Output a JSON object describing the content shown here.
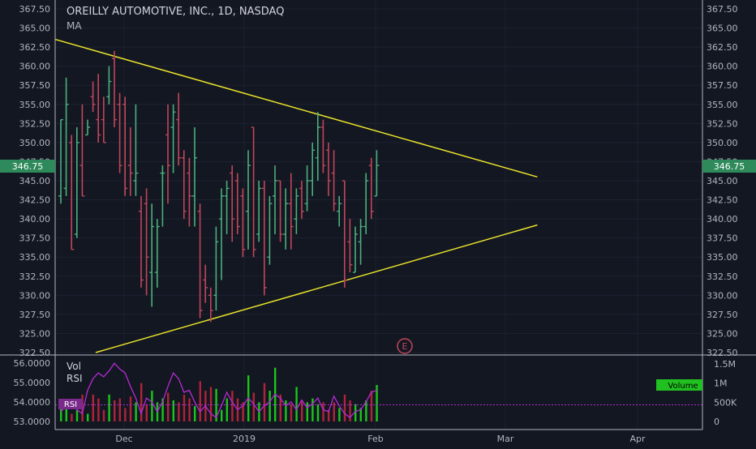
{
  "header": {
    "title": "OREILLY AUTOMOTIVE, INC., 1D, NASDAQ",
    "indicator": "MA"
  },
  "price_badge": "346.75",
  "earnings_marker": "E",
  "volume_pane": {
    "vol_label": "Vol",
    "rsi_label": "RSI",
    "rsi_tag": "RSI",
    "volume_tag": "Volume",
    "left_ticks": [
      "56.0000",
      "55.0000",
      "54.0000",
      "53.0000"
    ],
    "right_ticks": [
      "1.5M",
      "1M",
      "500K",
      "0"
    ]
  },
  "colors": {
    "background": "#131722",
    "up": "#4caf7d",
    "down": "#c0465a",
    "vol_up": "#1cc41c",
    "vol_down": "#b0233a",
    "trendline": "#e8e32a",
    "rsi": "#b62ad4",
    "badge": "#2e8a5a",
    "volume_tag_bg": "#21c021",
    "text": "#b2b5be"
  },
  "chart_data": {
    "type": "ohlc",
    "title": "OREILLY AUTOMOTIVE, INC., 1D, NASDAQ",
    "last_price": 346.75,
    "y_ticks": [
      "367.50",
      "365.00",
      "362.50",
      "360.00",
      "357.50",
      "355.00",
      "352.50",
      "350.00",
      "347.50",
      "345.00",
      "342.50",
      "340.00",
      "337.50",
      "335.00",
      "332.50",
      "330.00",
      "327.50",
      "325.00",
      "322.50"
    ],
    "ylim": [
      322.5,
      367.5
    ],
    "x_ticks": [
      "Dec",
      "2019",
      "Feb",
      "Mar",
      "Apr"
    ],
    "bars": [
      {
        "o": 343,
        "h": 353,
        "l": 342,
        "c": 353
      },
      {
        "o": 344,
        "h": 358.5,
        "l": 343,
        "c": 355
      },
      {
        "o": 350,
        "h": 351,
        "l": 336,
        "c": 336
      },
      {
        "o": 338,
        "h": 352,
        "l": 337.5,
        "c": 350
      },
      {
        "o": 347,
        "h": 355,
        "l": 343,
        "c": 343
      },
      {
        "o": 351,
        "h": 353,
        "l": 351,
        "c": 352
      },
      {
        "o": 356,
        "h": 358,
        "l": 354,
        "c": 355
      },
      {
        "o": 353,
        "h": 359,
        "l": 350,
        "c": 351
      },
      {
        "o": 353,
        "h": 356,
        "l": 350,
        "c": 350
      },
      {
        "o": 356,
        "h": 360,
        "l": 355,
        "c": 358
      },
      {
        "o": 361,
        "h": 362,
        "l": 352,
        "c": 353
      },
      {
        "o": 355,
        "h": 356.5,
        "l": 346,
        "c": 347
      },
      {
        "o": 355,
        "h": 356,
        "l": 343,
        "c": 344
      },
      {
        "o": 347,
        "h": 352,
        "l": 343,
        "c": 346
      },
      {
        "o": 345,
        "h": 355,
        "l": 343,
        "c": 346
      },
      {
        "o": 341,
        "h": 343,
        "l": 331,
        "c": 332
      },
      {
        "o": 342,
        "h": 344,
        "l": 330,
        "c": 335
      },
      {
        "o": 333,
        "h": 342,
        "l": 328.5,
        "c": 339
      },
      {
        "o": 333,
        "h": 340,
        "l": 331,
        "c": 339
      },
      {
        "o": 346,
        "h": 347,
        "l": 339,
        "c": 346
      },
      {
        "o": 351,
        "h": 355,
        "l": 342,
        "c": 347
      },
      {
        "o": 352,
        "h": 355,
        "l": 346,
        "c": 354
      },
      {
        "o": 353,
        "h": 356.5,
        "l": 347,
        "c": 348
      },
      {
        "o": 348,
        "h": 349,
        "l": 340,
        "c": 341
      },
      {
        "o": 346,
        "h": 348,
        "l": 339,
        "c": 343
      },
      {
        "o": 343,
        "h": 352,
        "l": 339,
        "c": 348
      },
      {
        "o": 341,
        "h": 342,
        "l": 327,
        "c": 328
      },
      {
        "o": 332,
        "h": 334,
        "l": 329,
        "c": 331
      },
      {
        "o": 330,
        "h": 331,
        "l": 326.5,
        "c": 328
      },
      {
        "o": 330,
        "h": 339,
        "l": 328,
        "c": 337
      },
      {
        "o": 340,
        "h": 344,
        "l": 332,
        "c": 343
      },
      {
        "o": 343,
        "h": 345,
        "l": 338,
        "c": 344
      },
      {
        "o": 346,
        "h": 347,
        "l": 337,
        "c": 340
      },
      {
        "o": 345,
        "h": 346,
        "l": 338,
        "c": 339
      },
      {
        "o": 343,
        "h": 344,
        "l": 335,
        "c": 336
      },
      {
        "o": 341,
        "h": 349,
        "l": 336,
        "c": 347
      },
      {
        "o": 352,
        "h": 352,
        "l": 335,
        "c": 336
      },
      {
        "o": 338,
        "h": 345,
        "l": 337,
        "c": 344
      },
      {
        "o": 344,
        "h": 345,
        "l": 330,
        "c": 331
      },
      {
        "o": 335,
        "h": 343,
        "l": 334,
        "c": 342
      },
      {
        "o": 343,
        "h": 347,
        "l": 338,
        "c": 345
      },
      {
        "o": 345,
        "h": 345,
        "l": 337,
        "c": 338
      },
      {
        "o": 338,
        "h": 344,
        "l": 336,
        "c": 342
      },
      {
        "o": 342,
        "h": 346,
        "l": 336,
        "c": 339
      },
      {
        "o": 340,
        "h": 344,
        "l": 338,
        "c": 343
      },
      {
        "o": 344,
        "h": 345,
        "l": 340,
        "c": 341
      },
      {
        "o": 342,
        "h": 347,
        "l": 341,
        "c": 345
      },
      {
        "o": 345,
        "h": 350,
        "l": 343,
        "c": 349
      },
      {
        "o": 348,
        "h": 354,
        "l": 345,
        "c": 352
      },
      {
        "o": 352,
        "h": 353,
        "l": 346,
        "c": 347
      },
      {
        "o": 349,
        "h": 350,
        "l": 343,
        "c": 345
      },
      {
        "o": 346,
        "h": 349,
        "l": 341,
        "c": 342
      },
      {
        "o": 341,
        "h": 343,
        "l": 339,
        "c": 342
      },
      {
        "o": 345,
        "h": 345,
        "l": 331,
        "c": 332
      },
      {
        "o": 337,
        "h": 340,
        "l": 333,
        "c": 334
      },
      {
        "o": 333,
        "h": 339,
        "l": 333,
        "c": 338
      },
      {
        "o": 337,
        "h": 340,
        "l": 334,
        "c": 339
      },
      {
        "o": 339,
        "h": 346,
        "l": 338,
        "c": 345
      },
      {
        "o": 347,
        "h": 348,
        "l": 340,
        "c": 341
      },
      {
        "o": 343,
        "h": 349,
        "l": 343,
        "c": 347
      }
    ],
    "volume": [
      0.35,
      0.55,
      0.2,
      0.3,
      0.7,
      0.2,
      0.7,
      0.6,
      0.3,
      0.7,
      0.55,
      0.6,
      0.35,
      0.65,
      0.5,
      1.0,
      0.45,
      0.8,
      0.5,
      0.6,
      0.75,
      0.55,
      0.5,
      0.7,
      0.6,
      0.4,
      1.05,
      0.8,
      0.9,
      0.85,
      0.3,
      0.6,
      0.8,
      0.6,
      0.5,
      1.2,
      0.75,
      0.5,
      1.0,
      0.8,
      1.4,
      0.7,
      0.55,
      0.45,
      0.9,
      0.55,
      0.5,
      0.6,
      0.45,
      0.5,
      0.3,
      0.5,
      0.35,
      0.7,
      0.55,
      0.45,
      0.35,
      0.55,
      0.8,
      0.95
    ],
    "volume_ylim": [
      0,
      1.5
    ],
    "volume_unit": "M",
    "rsi": [
      53.5,
      53.8,
      54.0,
      53.6,
      53.4,
      54.6,
      55.2,
      55.5,
      55.3,
      55.6,
      56.0,
      55.7,
      55.5,
      54.8,
      54.2,
      53.4,
      54.2,
      54.0,
      53.5,
      54.0,
      54.8,
      55.5,
      55.2,
      54.5,
      54.6,
      54.0,
      53.5,
      53.8,
      53.4,
      53.2,
      53.8,
      54.5,
      54.0,
      53.6,
      53.8,
      54.2,
      53.9,
      53.5,
      53.8,
      54.0,
      54.4,
      54.2,
      53.8,
      54.0,
      53.6,
      54.1,
      53.7,
      53.9,
      54.2,
      53.6,
      53.5,
      54.3,
      53.8,
      53.4,
      53.2,
      53.5,
      53.6,
      54.0,
      54.5,
      54.6
    ],
    "rsi_ylim": [
      52.7,
      56.3
    ],
    "rsi_level": 53.85,
    "trendlines": [
      {
        "from": {
          "bar": -1,
          "price": 363.5
        },
        "to": {
          "bar": 89,
          "price": 345.5
        }
      },
      {
        "from": {
          "bar": 6.5,
          "price": 322.5
        },
        "to": {
          "bar": 89,
          "price": 339.2
        }
      }
    ]
  }
}
